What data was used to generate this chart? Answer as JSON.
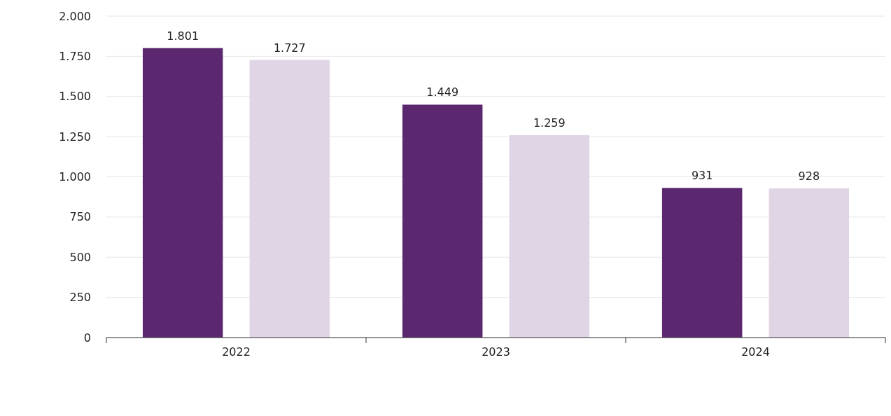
{
  "chart_data": {
    "type": "bar",
    "categories": [
      "2022",
      "2023",
      "2024"
    ],
    "series": [
      {
        "color": "#5b2870",
        "values": [
          1801,
          1449,
          931
        ],
        "value_labels": [
          "1.801",
          "1.449",
          "931"
        ]
      },
      {
        "color": "#e0d5e5",
        "values": [
          1727,
          1259,
          928
        ],
        "value_labels": [
          "1.727",
          "1.259",
          "928"
        ]
      }
    ],
    "ylim": [
      0,
      2000
    ],
    "yticks": [
      0,
      250,
      500,
      750,
      {
        "value": 1000,
        "label": "1.000"
      },
      {
        "value": 1250,
        "label": "1.250"
      },
      {
        "value": 1500,
        "label": "1.500"
      },
      {
        "value": 1750,
        "label": "1.750"
      },
      {
        "value": 2000,
        "label": "2.000"
      }
    ],
    "grid": "y"
  }
}
